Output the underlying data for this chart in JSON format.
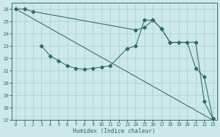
{
  "background_color": "#cce8e8",
  "grid_color": "#aacccc",
  "line_color": "#2d6b6b",
  "xlabel": "Humidex (Indice chaleur)",
  "ylim": [
    17,
    26.5
  ],
  "xlim": [
    -0.5,
    23.5
  ],
  "yticks": [
    17,
    18,
    19,
    20,
    21,
    22,
    23,
    24,
    25,
    26
  ],
  "xticks": [
    0,
    1,
    2,
    3,
    4,
    5,
    6,
    7,
    8,
    9,
    10,
    11,
    12,
    13,
    14,
    15,
    16,
    17,
    18,
    19,
    20,
    21,
    22,
    23
  ],
  "line1_x": [
    0,
    23
  ],
  "line1_y": [
    26,
    17
  ],
  "line2_x": [
    0,
    1,
    2,
    14,
    15,
    16,
    17,
    18,
    21,
    22,
    23
  ],
  "line2_y": [
    26,
    26,
    25.8,
    24.3,
    24.5,
    25.1,
    24.4,
    23.3,
    23.3,
    18.5,
    17.1
  ],
  "line3_x": [
    3,
    4,
    5,
    6,
    7,
    8,
    9,
    10,
    11,
    13,
    14,
    15,
    16,
    17,
    18,
    19,
    20,
    21,
    22,
    23
  ],
  "line3_y": [
    23.0,
    22.2,
    21.8,
    21.4,
    21.2,
    21.1,
    21.2,
    21.3,
    21.4,
    22.8,
    23.0,
    25.1,
    25.1,
    24.4,
    23.3,
    23.3,
    23.3,
    21.2,
    20.5,
    17.1
  ]
}
